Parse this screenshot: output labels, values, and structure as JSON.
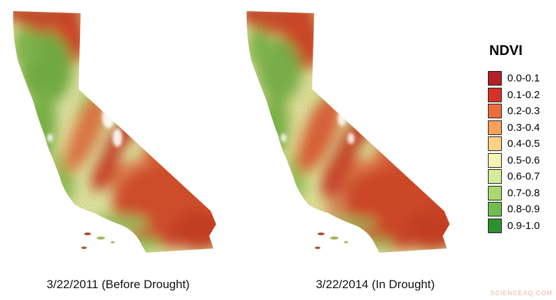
{
  "legend": {
    "title": "NDVI",
    "items": [
      {
        "range": "0.0-0.1",
        "color": "#b42025"
      },
      {
        "range": "0.1-0.2",
        "color": "#d73027"
      },
      {
        "range": "0.2-0.3",
        "color": "#ec6c3f"
      },
      {
        "range": "0.3-0.4",
        "color": "#f9a05b"
      },
      {
        "range": "0.4-0.5",
        "color": "#fdd186"
      },
      {
        "range": "0.5-0.6",
        "color": "#f6f4b5"
      },
      {
        "range": "0.6-0.7",
        "color": "#d8eb9b"
      },
      {
        "range": "0.7-0.8",
        "color": "#abd96d"
      },
      {
        "range": "0.8-0.9",
        "color": "#6fbd4f"
      },
      {
        "range": "0.9-1.0",
        "color": "#2d9132"
      }
    ]
  },
  "maps": [
    {
      "caption": "3/22/2011 (Before Drought)"
    },
    {
      "caption": "3/22/2014 (In Drought)"
    }
  ],
  "watermark": "SCIENCEAQ.COM"
}
